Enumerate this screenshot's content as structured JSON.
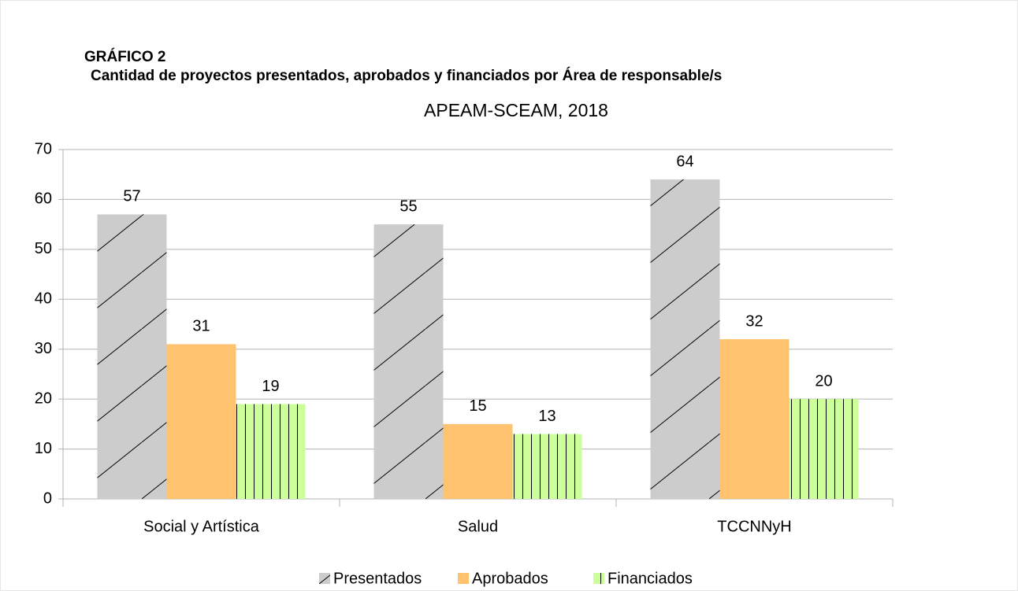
{
  "chart_data": {
    "type": "bar",
    "title": "GRÁFICO 2",
    "heading": "Cantidad de proyectos presentados, aprobados y financiados por Área de responsable/s",
    "subtitle": "APEAM-SCEAM, 2018",
    "categories": [
      "Social y Artística",
      "Salud",
      "TCCNNyH"
    ],
    "series": [
      {
        "name": "Presentados",
        "color": "#cccccc",
        "pattern": "diagonal",
        "values": [
          57,
          55,
          64
        ]
      },
      {
        "name": "Aprobados",
        "color": "#ffc370",
        "pattern": "none",
        "values": [
          31,
          15,
          32
        ]
      },
      {
        "name": "Financiados",
        "color": "#ccff99",
        "pattern": "vertical",
        "values": [
          19,
          13,
          20
        ]
      }
    ],
    "ylim": [
      0,
      70
    ],
    "yticks": [
      0,
      10,
      20,
      30,
      40,
      50,
      60,
      70
    ],
    "grid": true,
    "legend": "bottom"
  }
}
